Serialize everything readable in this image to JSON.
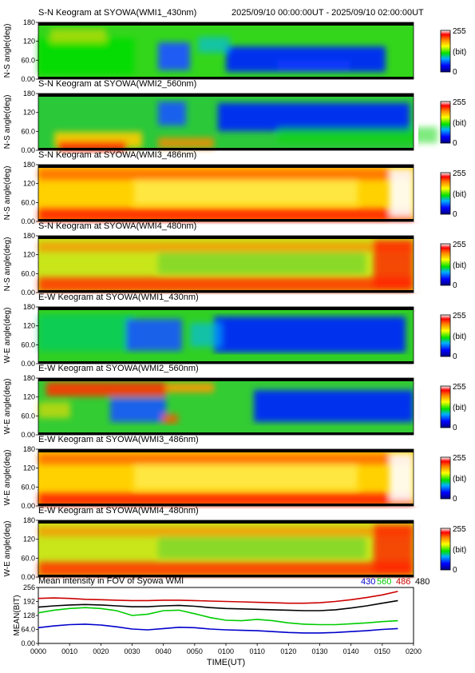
{
  "header": {
    "time_range": "2025/09/10 00:00:00UT - 2025/09/10 02:00:00UT"
  },
  "panels": [
    {
      "title": "S-N Keogram at SYOWA(WMI1_430nm)",
      "ylabel": "N-S angle(deg)",
      "kind": "sn430"
    },
    {
      "title": "S-N Keogram at SYOWA(WMI2_560nm)",
      "ylabel": "N-S angle(deg)",
      "kind": "sn560"
    },
    {
      "title": "S-N Keogram at SYOWA(WMI3_486nm)",
      "ylabel": "N-S angle(deg)",
      "kind": "bright"
    },
    {
      "title": "S-N Keogram at SYOWA(WMI4_480nm)",
      "ylabel": "N-S angle(deg)",
      "kind": "medium"
    },
    {
      "title": "E-W Keogram at SYOWA(WMI1_430nm)",
      "ylabel": "W-E angle(deg)",
      "kind": "ew430"
    },
    {
      "title": "E-W Keogram at SYOWA(WMI2_560nm)",
      "ylabel": "W-E angle(deg)",
      "kind": "ew560"
    },
    {
      "title": "E-W Keogram at SYOWA(WMI3_486nm)",
      "ylabel": "W-E angle(deg)",
      "kind": "bright"
    },
    {
      "title": "E-W Keogram at SYOWA(WMI4_480nm)",
      "ylabel": "W-E angle(deg)",
      "kind": "medium"
    }
  ],
  "angle_ticks": [
    "0.00",
    "60.0",
    "120",
    "180"
  ],
  "colorbar": {
    "max_label": "255",
    "unit_label": "(bit)",
    "min_label": "0"
  },
  "chart_data": {
    "type": "line",
    "title": "Mean intensity in FOV of Syowa WMI",
    "xlabel": "TIME(UT)",
    "ylabel": "MEAN(BIT)",
    "x_ticks": [
      "0000",
      "0010",
      "0020",
      "0030",
      "0040",
      "0050",
      "0100",
      "0110",
      "0120",
      "0130",
      "0140",
      "0150",
      "0200"
    ],
    "y_ticks": [
      "0.00",
      "64.0",
      "128",
      "192",
      "256"
    ],
    "xlim": [
      0,
      120
    ],
    "ylim": [
      0,
      256
    ],
    "grid": false,
    "legend_placement": "top-right",
    "x": [
      0,
      5,
      10,
      15,
      20,
      25,
      30,
      35,
      40,
      45,
      50,
      55,
      60,
      65,
      70,
      75,
      80,
      85,
      90,
      95,
      100,
      105,
      110,
      115
    ],
    "series": [
      {
        "name": "430",
        "color": "#0000cc",
        "values": [
          72,
          80,
          86,
          88,
          84,
          76,
          66,
          62,
          68,
          74,
          72,
          66,
          62,
          60,
          58,
          54,
          50,
          48,
          48,
          50,
          54,
          58,
          64,
          68
        ]
      },
      {
        "name": "560",
        "color": "#00cc00",
        "values": [
          140,
          152,
          160,
          164,
          160,
          150,
          128,
          134,
          150,
          152,
          136,
          118,
          106,
          104,
          110,
          104,
          94,
          88,
          86,
          86,
          90,
          94,
          100,
          104
        ]
      },
      {
        "name": "486",
        "color": "#cc0000",
        "values": [
          206,
          208,
          206,
          202,
          200,
          198,
          196,
          196,
          198,
          198,
          196,
          194,
          192,
          190,
          188,
          186,
          184,
          184,
          186,
          192,
          200,
          210,
          222,
          238
        ]
      },
      {
        "name": "480",
        "color": "#000000",
        "values": [
          166,
          172,
          176,
          178,
          176,
          172,
          168,
          168,
          172,
          174,
          170,
          164,
          160,
          158,
          156,
          154,
          152,
          150,
          150,
          154,
          162,
          172,
          184,
          196
        ]
      }
    ]
  }
}
